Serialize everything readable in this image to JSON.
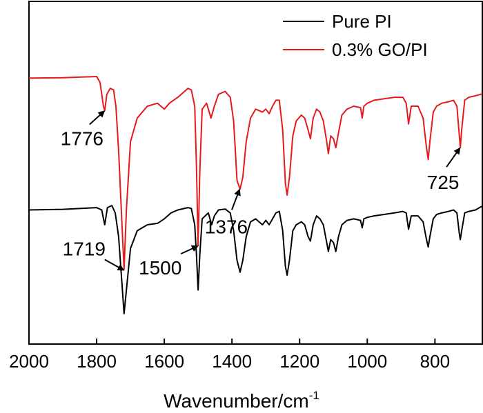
{
  "chart_data": {
    "type": "line",
    "title": "",
    "xlabel": "Wavenumber/cm",
    "xlabel_superscript": "-1",
    "ylabel": "",
    "xlim": [
      2000,
      660
    ],
    "x_ticks": [
      2000,
      1800,
      1600,
      1400,
      1200,
      1000,
      800
    ],
    "y_ticks_shown": false,
    "grid": false,
    "legend_position": "top-right",
    "series": [
      {
        "name": "Pure PI",
        "color": "#000000",
        "points": [
          [
            2000,
            45.0
          ],
          [
            1900,
            45.2
          ],
          [
            1800,
            45.8
          ],
          [
            1785,
            45.0
          ],
          [
            1776,
            40.0
          ],
          [
            1768,
            45.8
          ],
          [
            1755,
            46.5
          ],
          [
            1745,
            44.0
          ],
          [
            1735,
            36.0
          ],
          [
            1725,
            20.0
          ],
          [
            1719,
            10.0
          ],
          [
            1712,
            18.0
          ],
          [
            1700,
            32.0
          ],
          [
            1680,
            38.0
          ],
          [
            1650,
            40.0
          ],
          [
            1620,
            40.5
          ],
          [
            1600,
            42.0
          ],
          [
            1580,
            44.0
          ],
          [
            1560,
            45.0
          ],
          [
            1530,
            45.8
          ],
          [
            1520,
            45.5
          ],
          [
            1510,
            40.0
          ],
          [
            1505,
            30.0
          ],
          [
            1500,
            18.0
          ],
          [
            1495,
            30.0
          ],
          [
            1488,
            42.0
          ],
          [
            1470,
            44.0
          ],
          [
            1460,
            40.0
          ],
          [
            1452,
            43.0
          ],
          [
            1440,
            45.0
          ],
          [
            1420,
            45.3
          ],
          [
            1405,
            44.0
          ],
          [
            1395,
            38.0
          ],
          [
            1385,
            28.0
          ],
          [
            1376,
            24.0
          ],
          [
            1368,
            28.0
          ],
          [
            1358,
            36.0
          ],
          [
            1345,
            41.0
          ],
          [
            1330,
            42.0
          ],
          [
            1310,
            40.0
          ],
          [
            1300,
            41.5
          ],
          [
            1290,
            40.0
          ],
          [
            1280,
            42.0
          ],
          [
            1270,
            44.0
          ],
          [
            1260,
            44.5
          ],
          [
            1250,
            38.0
          ],
          [
            1242,
            26.0
          ],
          [
            1237,
            23.0
          ],
          [
            1230,
            28.0
          ],
          [
            1220,
            38.0
          ],
          [
            1210,
            40.0
          ],
          [
            1195,
            41.0
          ],
          [
            1185,
            40.0
          ],
          [
            1175,
            36.0
          ],
          [
            1168,
            34.5
          ],
          [
            1160,
            40.0
          ],
          [
            1150,
            43.0
          ],
          [
            1140,
            42.0
          ],
          [
            1130,
            40.0
          ],
          [
            1120,
            34.0
          ],
          [
            1115,
            31.0
          ],
          [
            1108,
            35.0
          ],
          [
            1100,
            34.0
          ],
          [
            1093,
            31.0
          ],
          [
            1085,
            36.0
          ],
          [
            1075,
            40.0
          ],
          [
            1060,
            41.5
          ],
          [
            1040,
            42.0
          ],
          [
            1020,
            41.5
          ],
          [
            1015,
            39.0
          ],
          [
            1010,
            42.0
          ],
          [
            1000,
            42.5
          ],
          [
            980,
            43.0
          ],
          [
            950,
            43.5
          ],
          [
            920,
            44.0
          ],
          [
            895,
            44.5
          ],
          [
            885,
            44.0
          ],
          [
            878,
            38.5
          ],
          [
            870,
            43.0
          ],
          [
            850,
            43.0
          ],
          [
            835,
            41.0
          ],
          [
            825,
            35.0
          ],
          [
            820,
            32.5
          ],
          [
            815,
            36.0
          ],
          [
            805,
            42.0
          ],
          [
            795,
            43.5
          ],
          [
            780,
            44.0
          ],
          [
            760,
            44.5
          ],
          [
            745,
            45.0
          ],
          [
            735,
            44.0
          ],
          [
            728,
            37.0
          ],
          [
            725,
            35.0
          ],
          [
            721,
            38.0
          ],
          [
            712,
            44.0
          ],
          [
            700,
            44.5
          ],
          [
            680,
            45.0
          ],
          [
            665,
            46.0
          ],
          [
            660,
            46.2
          ]
        ]
      },
      {
        "name": "0.3% GO/PI",
        "color": "#e41a1c",
        "points": [
          [
            2000,
            89.5
          ],
          [
            1900,
            89.6
          ],
          [
            1800,
            90.0
          ],
          [
            1790,
            88.0
          ],
          [
            1780,
            80.0
          ],
          [
            1776,
            78.5
          ],
          [
            1770,
            84.0
          ],
          [
            1760,
            86.0
          ],
          [
            1750,
            85.5
          ],
          [
            1743,
            80.0
          ],
          [
            1735,
            65.0
          ],
          [
            1725,
            40.0
          ],
          [
            1719,
            25.0
          ],
          [
            1712,
            45.0
          ],
          [
            1700,
            68.0
          ],
          [
            1680,
            76.0
          ],
          [
            1650,
            80.0
          ],
          [
            1620,
            81.0
          ],
          [
            1600,
            79.0
          ],
          [
            1585,
            81.0
          ],
          [
            1560,
            83.0
          ],
          [
            1530,
            86.0
          ],
          [
            1520,
            85.5
          ],
          [
            1510,
            80.0
          ],
          [
            1505,
            60.0
          ],
          [
            1500,
            33.0
          ],
          [
            1495,
            58.0
          ],
          [
            1488,
            79.0
          ],
          [
            1475,
            81.0
          ],
          [
            1462,
            76.0
          ],
          [
            1452,
            80.0
          ],
          [
            1440,
            84.0
          ],
          [
            1420,
            85.0
          ],
          [
            1405,
            83.0
          ],
          [
            1395,
            75.0
          ],
          [
            1385,
            55.0
          ],
          [
            1376,
            52.0
          ],
          [
            1368,
            56.0
          ],
          [
            1358,
            68.0
          ],
          [
            1345,
            76.0
          ],
          [
            1330,
            79.0
          ],
          [
            1310,
            78.0
          ],
          [
            1300,
            79.0
          ],
          [
            1290,
            77.5
          ],
          [
            1280,
            80.0
          ],
          [
            1270,
            82.0
          ],
          [
            1260,
            82.0
          ],
          [
            1250,
            72.0
          ],
          [
            1242,
            54.0
          ],
          [
            1237,
            50.0
          ],
          [
            1230,
            56.0
          ],
          [
            1220,
            70.0
          ],
          [
            1210,
            75.0
          ],
          [
            1195,
            77.0
          ],
          [
            1185,
            76.0
          ],
          [
            1175,
            72.0
          ],
          [
            1168,
            69.0
          ],
          [
            1160,
            76.0
          ],
          [
            1150,
            79.0
          ],
          [
            1140,
            78.0
          ],
          [
            1130,
            75.0
          ],
          [
            1120,
            68.0
          ],
          [
            1115,
            64.0
          ],
          [
            1108,
            70.0
          ],
          [
            1100,
            69.0
          ],
          [
            1093,
            66.0
          ],
          [
            1085,
            71.0
          ],
          [
            1075,
            77.0
          ],
          [
            1060,
            79.0
          ],
          [
            1040,
            80.0
          ],
          [
            1020,
            79.5
          ],
          [
            1015,
            76.0
          ],
          [
            1010,
            80.0
          ],
          [
            1000,
            81.0
          ],
          [
            980,
            82.0
          ],
          [
            950,
            82.5
          ],
          [
            920,
            83.0
          ],
          [
            895,
            83.0
          ],
          [
            885,
            81.0
          ],
          [
            878,
            74.0
          ],
          [
            870,
            80.0
          ],
          [
            850,
            80.0
          ],
          [
            835,
            76.0
          ],
          [
            825,
            66.0
          ],
          [
            820,
            62.0
          ],
          [
            815,
            68.0
          ],
          [
            805,
            78.0
          ],
          [
            795,
            80.0
          ],
          [
            780,
            81.0
          ],
          [
            760,
            81.5
          ],
          [
            745,
            82.0
          ],
          [
            735,
            80.0
          ],
          [
            728,
            70.0
          ],
          [
            725,
            66.0
          ],
          [
            721,
            72.0
          ],
          [
            712,
            82.0
          ],
          [
            700,
            83.0
          ],
          [
            680,
            83.5
          ],
          [
            665,
            84.0
          ],
          [
            660,
            84.2
          ]
        ]
      }
    ],
    "annotations": [
      {
        "text": "1776",
        "x": 1776,
        "y": 78.5
      },
      {
        "text": "1719",
        "x": 1719,
        "y": 25.0
      },
      {
        "text": "1500",
        "x": 1500,
        "y": 33.0
      },
      {
        "text": "1376",
        "x": 1376,
        "y": 52.0
      },
      {
        "text": "725",
        "x": 725,
        "y": 66.0
      }
    ]
  }
}
